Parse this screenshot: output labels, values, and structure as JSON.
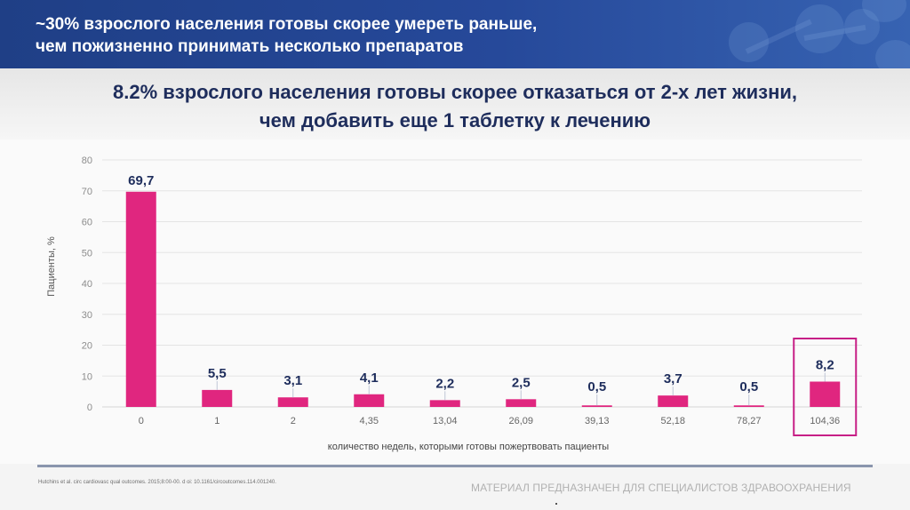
{
  "header": {
    "title_line1": "~30% взрослого населения готовы скорее умереть раньше,",
    "title_line2": "чем пожизненно принимать несколько препаратов"
  },
  "subtitle": {
    "line1": "8.2% взрослого населения готовы скорее отказаться от 2-х лет жизни,",
    "line2": "чем добавить еще 1 таблетку к лечению"
  },
  "chart_data": {
    "type": "bar",
    "title": "",
    "xlabel": "количество недель, которыми готовы пожертвовать пациенты",
    "ylabel": "Пациенты, %",
    "categories": [
      "0",
      "1",
      "2",
      "4,35",
      "13,04",
      "26,09",
      "39,13",
      "52,18",
      "78,27",
      "104,36"
    ],
    "values": [
      69.7,
      5.5,
      3.1,
      4.1,
      2.2,
      2.5,
      0.5,
      3.7,
      0.5,
      8.2
    ],
    "value_labels": [
      "69,7",
      "5,5",
      "3,1",
      "4,1",
      "2,2",
      "2,5",
      "0,5",
      "3,7",
      "0,5",
      "8,2"
    ],
    "ylim": [
      0,
      80
    ],
    "yticks": [
      0,
      10,
      20,
      30,
      40,
      50,
      60,
      70,
      80
    ],
    "grid": true,
    "highlighted_category": "104,36",
    "colors": {
      "bar": "#e0267f",
      "label": "#1e2d5c",
      "highlight_box": "#c71f86"
    }
  },
  "footer": {
    "citation": "Hutchins et al. circ cardiovasc qual outcomes. 2015;8:00-00. d oi: 10.1161/circoutcomes.114.001240.",
    "disclaimer": "МАТЕРИАЛ ПРЕДНАЗНАЧЕН ДЛЯ СПЕЦИАЛИСТОВ ЗДРАВООХРАНЕНИЯ"
  }
}
